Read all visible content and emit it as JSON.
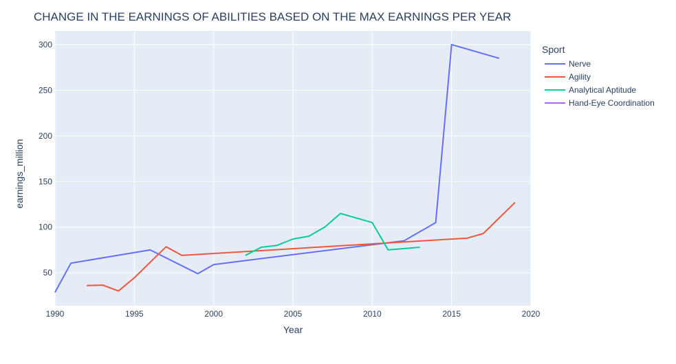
{
  "chart_data": {
    "type": "line",
    "title": "CHANGE IN THE EARNINGS OF ABILITIES BASED ON THE MAX EARNINGS PER YEAR",
    "xlabel": "Year",
    "ylabel": "earnings_million",
    "xlim": [
      1990,
      2020
    ],
    "ylim": [
      14,
      315
    ],
    "x_ticks": [
      1990,
      1995,
      2000,
      2005,
      2010,
      2015,
      2020
    ],
    "y_ticks": [
      50,
      100,
      150,
      200,
      250,
      300
    ],
    "grid": true,
    "legend": {
      "title": "Sport",
      "placement": "right"
    },
    "series": [
      {
        "name": "Nerve",
        "color": "#636efa",
        "points": [
          [
            1990,
            28.6
          ],
          [
            1991,
            60.5
          ],
          [
            1996,
            75
          ],
          [
            1999,
            49
          ],
          [
            2000,
            59
          ],
          [
            2012,
            85
          ],
          [
            2014,
            105
          ],
          [
            2015,
            300
          ],
          [
            2018,
            285
          ]
        ]
      },
      {
        "name": "Agility",
        "color": "#ef553b",
        "points": [
          [
            1992,
            36
          ],
          [
            1993,
            36.5
          ],
          [
            1994,
            30
          ],
          [
            1995,
            44.5
          ],
          [
            1997,
            78.5
          ],
          [
            1998,
            69
          ],
          [
            2016,
            88
          ],
          [
            2017,
            93
          ],
          [
            2019,
            127
          ]
        ]
      },
      {
        "name": "Analytical Aptitude",
        "color": "#00cc96",
        "points": [
          [
            2002,
            69
          ],
          [
            2003,
            78
          ],
          [
            2004,
            80
          ],
          [
            2005,
            87
          ],
          [
            2006,
            90
          ],
          [
            2007,
            100
          ],
          [
            2008,
            115
          ],
          [
            2010,
            105
          ],
          [
            2011,
            75
          ],
          [
            2013,
            78
          ]
        ]
      },
      {
        "name": "Hand-Eye Coordination",
        "color": "#ab63fa",
        "points": []
      }
    ]
  }
}
